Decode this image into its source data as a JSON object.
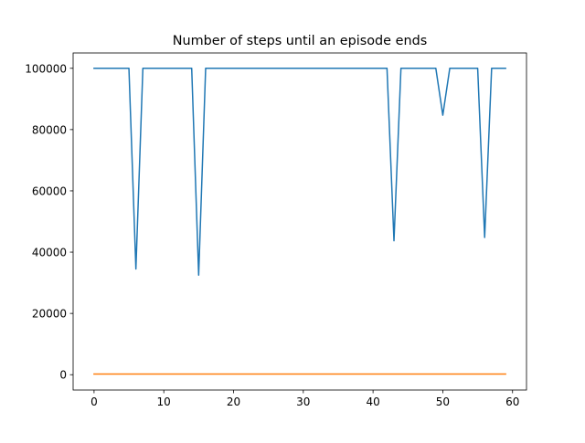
{
  "chart_data": {
    "type": "line",
    "title": "Number of steps until an episode ends",
    "xlabel": "",
    "ylabel": "",
    "xlim": [
      -3,
      62
    ],
    "ylim": [
      -5000,
      105000
    ],
    "xticks": [
      0,
      10,
      20,
      30,
      40,
      50,
      60
    ],
    "yticks": [
      0,
      20000,
      40000,
      60000,
      80000,
      100000
    ],
    "grid": false,
    "x": [
      0,
      1,
      2,
      3,
      4,
      5,
      6,
      7,
      8,
      9,
      10,
      11,
      12,
      13,
      14,
      15,
      16,
      17,
      18,
      19,
      20,
      21,
      22,
      23,
      24,
      25,
      26,
      27,
      28,
      29,
      30,
      31,
      32,
      33,
      34,
      35,
      36,
      37,
      38,
      39,
      40,
      41,
      42,
      43,
      44,
      45,
      46,
      47,
      48,
      49,
      50,
      51,
      52,
      53,
      54,
      55,
      56,
      57,
      58,
      59
    ],
    "series": [
      {
        "color": "#1f77b4",
        "values": [
          100000,
          100000,
          100000,
          100000,
          100000,
          100000,
          34500,
          100000,
          100000,
          100000,
          100000,
          100000,
          100000,
          100000,
          100000,
          32500,
          100000,
          100000,
          100000,
          100000,
          100000,
          100000,
          100000,
          100000,
          100000,
          100000,
          100000,
          100000,
          100000,
          100000,
          100000,
          100000,
          100000,
          100000,
          100000,
          100000,
          100000,
          100000,
          100000,
          100000,
          100000,
          100000,
          100000,
          43700,
          100000,
          100000,
          100000,
          100000,
          100000,
          100000,
          84700,
          100000,
          100000,
          100000,
          100000,
          100000,
          44800,
          100000,
          100000,
          100000
        ]
      },
      {
        "color": "#ff7f0e",
        "values": [
          200,
          200,
          200,
          200,
          200,
          200,
          200,
          200,
          200,
          200,
          200,
          200,
          200,
          200,
          200,
          200,
          200,
          200,
          200,
          200,
          200,
          200,
          200,
          200,
          200,
          200,
          200,
          200,
          200,
          200,
          200,
          200,
          200,
          200,
          200,
          200,
          200,
          200,
          200,
          200,
          200,
          200,
          200,
          200,
          200,
          200,
          200,
          200,
          200,
          200,
          200,
          200,
          200,
          200,
          200,
          200,
          200,
          200,
          200,
          200
        ]
      }
    ]
  }
}
